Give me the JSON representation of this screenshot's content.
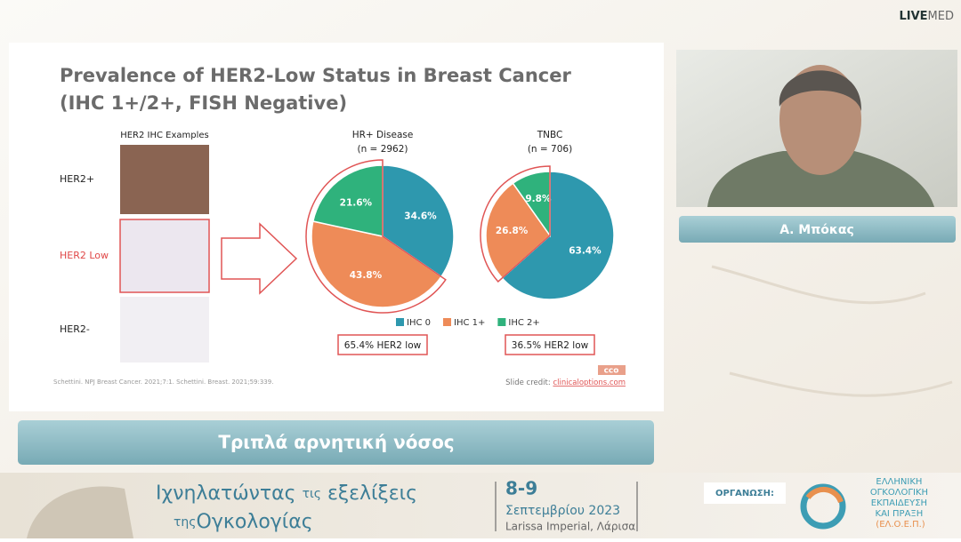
{
  "brand": {
    "bold": "LIVE",
    "light": "MED"
  },
  "slide": {
    "title": "Prevalence of HER2-Low Status in Breast Cancer",
    "subtitle": "(IHC 1+/2+, FISH Negative)",
    "examples_title": "HER2 IHC Examples",
    "examples": [
      "HER2+",
      "HER2 Low",
      "HER2-"
    ],
    "legend": [
      {
        "name": "IHC 0",
        "color": "#2e98ae"
      },
      {
        "name": "IHC 1+",
        "color": "#ee8b58"
      },
      {
        "name": "IHC 2+",
        "color": "#2fb27c"
      }
    ],
    "pies": [
      {
        "title": "HR+ Disease",
        "n": "(n = 2962)",
        "values": [
          34.6,
          43.8,
          21.6
        ],
        "value_labels": [
          "34.6%",
          "43.8%",
          "21.6%"
        ],
        "summary": "65.4% HER2 low"
      },
      {
        "title": "TNBC",
        "n": "(n = 706)",
        "values": [
          63.4,
          26.8,
          9.8
        ],
        "value_labels": [
          "63.4%",
          "26.8%",
          "9.8%"
        ],
        "summary": "36.5% HER2 low"
      }
    ],
    "reference": "Schettini. NPJ Breast Cancer. 2021;7:1. Schettini. Breast. 2021;59:339.",
    "credit_label": "Slide credit:",
    "credit_link": "clinicaloptions.com",
    "logo": "cco"
  },
  "speaker": "Α. Μπόκας",
  "caption": "Τριπλά αρνητική νόσος",
  "footer": {
    "title_a": "Ιχνηλατώντας",
    "title_b": "τις",
    "title_c": "εξελίξεις",
    "title_d": "της",
    "title_e": "Ογκολογίας",
    "dates": "8-9",
    "month": "Σεπτεμβρίου 2023",
    "venue": "Larissa Imperial, Λάρισα",
    "organizer_label": "ΟΡΓΑΝΩΣΗ:",
    "org_lines": [
      "ΕΛΛΗΝΙΚΗ",
      "ΟΓΚΟΛΟΓΙΚΗ",
      "ΕΚΠΑΙΔΕΥΣΗ",
      "ΚΑΙ ΠΡΑΞΗ",
      "(ΕΛ.Ο.Ε.Π.)"
    ]
  }
}
